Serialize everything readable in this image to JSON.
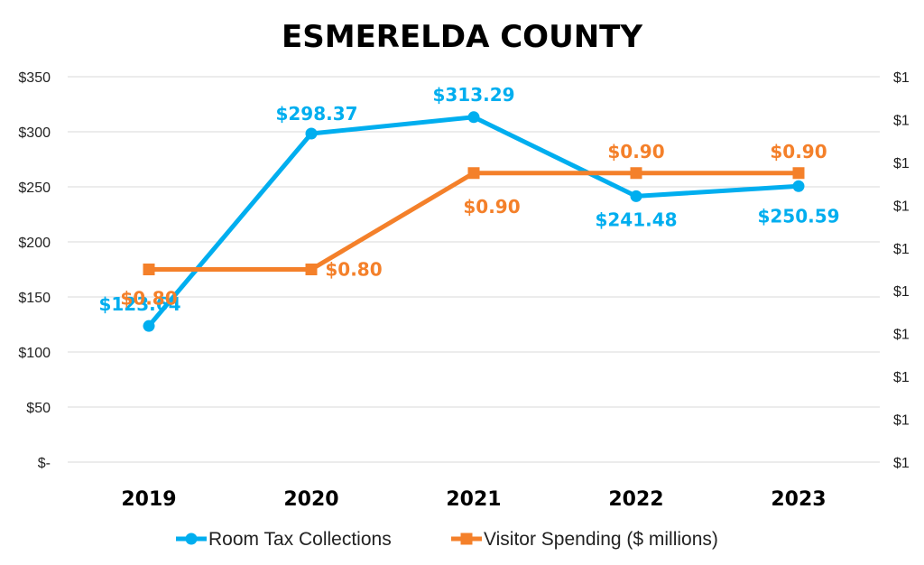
{
  "chart_data": {
    "type": "line",
    "title": "ESMERELDA COUNTY",
    "categories": [
      "2019",
      "2020",
      "2021",
      "2022",
      "2023"
    ],
    "y_left": {
      "ticks": [
        "$350",
        "$300",
        "$250",
        "$200",
        "$150",
        "$100",
        "$50",
        "$-"
      ],
      "range": [
        0,
        350
      ]
    },
    "y_right": {
      "ticks": [
        "$1",
        "$1",
        "$1",
        "$1",
        "$1",
        "$1",
        "$1",
        "$1",
        "$1",
        "$1"
      ],
      "range": [
        0.6,
        1.0
      ]
    },
    "grid": true,
    "legend_position": "bottom",
    "series": [
      {
        "name": "Room Tax Collections",
        "axis": "left",
        "color": "#00aeef",
        "marker": "circle",
        "values": [
          123.64,
          298.37,
          313.29,
          241.48,
          250.59
        ],
        "labels": [
          "$123.64",
          "$298.37",
          "$313.29",
          "$241.48",
          "$250.59"
        ]
      },
      {
        "name": "Visitor Spending ($ millions)",
        "axis": "right",
        "color": "#f4802a",
        "marker": "square",
        "values": [
          0.8,
          0.8,
          0.9,
          0.9,
          0.9
        ],
        "labels": [
          "$0.80",
          "$0.80",
          "$0.90",
          "$0.90",
          "$0.90"
        ]
      }
    ]
  }
}
